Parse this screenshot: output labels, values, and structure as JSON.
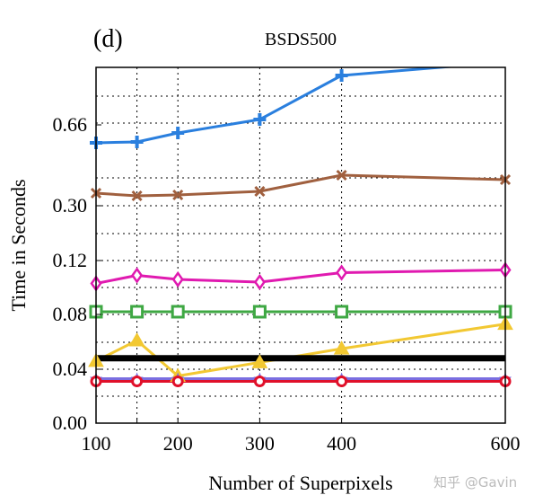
{
  "chart_data": {
    "type": "line",
    "panel_label": "(d)",
    "title": "BSDS500",
    "xlabel": "Number of Superpixels",
    "ylabel": "Time in Seconds",
    "x": [
      100,
      150,
      200,
      300,
      400,
      600
    ],
    "x_ticks": [
      100,
      200,
      300,
      400,
      600
    ],
    "x_tick_labels": [
      "100",
      "200",
      "300",
      "400",
      "600"
    ],
    "y_ticks": [
      0.0,
      0.04,
      0.08,
      0.12,
      0.3,
      0.66
    ],
    "y_tick_labels": [
      "0.00",
      "0.04",
      "0.08",
      "0.12",
      "0.30",
      "0.66"
    ],
    "y_scale": "piecewise (ticks evenly spaced up to 0.30, wider gap to 0.66)",
    "xlim": [
      100,
      600
    ],
    "ylim": [
      0.0,
      0.916
    ],
    "grid": true,
    "series": [
      {
        "name": "blue-plus",
        "color": "#2a7fde",
        "marker": "plus",
        "values": [
          0.58,
          0.584,
          0.624,
          0.684,
          0.88,
          0.94
        ]
      },
      {
        "name": "brown-x",
        "color": "#a0603f",
        "marker": "x",
        "values": [
          0.356,
          0.344,
          0.348,
          0.364,
          0.436,
          0.416
        ]
      },
      {
        "name": "magenta-diamond",
        "color": "#e01ab0",
        "marker": "diamond",
        "values": [
          0.103,
          0.109,
          0.106,
          0.104,
          0.111,
          0.113
        ]
      },
      {
        "name": "green-square",
        "color": "#3fa844",
        "marker": "square",
        "values": [
          0.082,
          0.082,
          0.082,
          0.082,
          0.082,
          0.082
        ]
      },
      {
        "name": "yellow-triangle",
        "color": "#f2c832",
        "marker": "triangle",
        "values": [
          0.046,
          0.061,
          0.035,
          0.045,
          0.055,
          0.073
        ]
      },
      {
        "name": "black-constant",
        "color": "#000000",
        "marker": "none",
        "values": [
          0.048,
          0.048,
          0.048,
          0.048,
          0.048,
          0.048
        ]
      },
      {
        "name": "purple-star",
        "color": "#7a6ee0",
        "marker": "star",
        "values": [
          0.033,
          0.033,
          0.033,
          0.033,
          0.033,
          0.033
        ]
      },
      {
        "name": "red-circle",
        "color": "#e0102a",
        "marker": "circle",
        "values": [
          0.031,
          0.031,
          0.031,
          0.031,
          0.031,
          0.031
        ]
      }
    ]
  },
  "watermark": "知乎 @Gavin"
}
